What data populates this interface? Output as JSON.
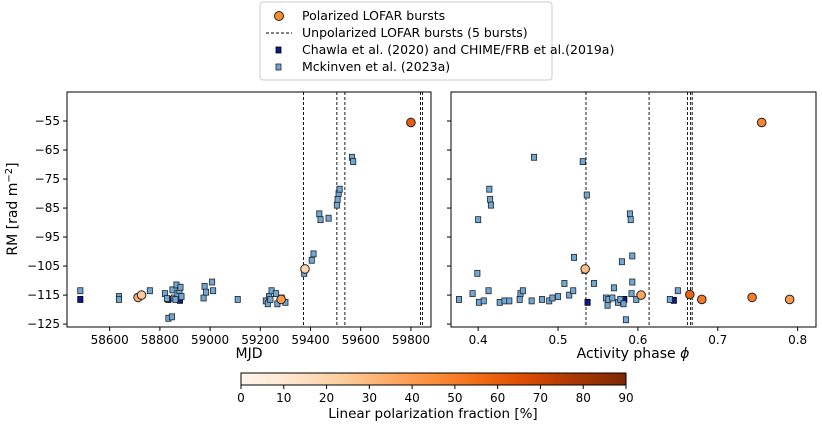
{
  "chart_data": [
    {
      "type": "scatter",
      "panel": "left",
      "xlabel": "MJD",
      "ylabel": "RM [rad m$^{-2}$]",
      "xlim": [
        58430,
        59880
      ],
      "ylim": [
        -126,
        -45
      ],
      "xticks": [
        58600,
        58800,
        59000,
        59200,
        59400,
        59600,
        59800
      ],
      "yticks": [
        -55,
        -65,
        -75,
        -85,
        -95,
        -105,
        -115,
        -125
      ],
      "grid": false,
      "series": [
        {
          "name": "Polarized LOFAR bursts",
          "marker": "circle",
          "points": [
            [
              58713,
              -115.8
            ],
            [
              58727,
              -115.0
            ],
            [
              59283,
              -116.5
            ],
            [
              59378,
              -106.0
            ],
            [
              59800,
              -55.5
            ]
          ]
        },
        {
          "name": "Unpolarized LOFAR bursts (5 bursts)",
          "marker": "vline",
          "x": [
            59372,
            59505,
            59537,
            59838,
            59846
          ]
        },
        {
          "name": "Chawla et al. (2020) and CHIME/FRB et al.(2019a)",
          "marker": "square",
          "points": [
            [
              58483,
              -116.5
            ],
            [
              58834,
              -116.5
            ],
            [
              58880,
              -116.8
            ]
          ]
        },
        {
          "name": "Mckinven et al. (2023a)",
          "marker": "square",
          "points": [
            [
              58483,
              -113.5
            ],
            [
              58637,
              -115.5
            ],
            [
              58637,
              -116.5
            ],
            [
              58760,
              -113.5
            ],
            [
              58820,
              -114.5
            ],
            [
              58828,
              -116.2
            ],
            [
              58834,
              -123
            ],
            [
              58848,
              -122.5
            ],
            [
              58850,
              -113.2
            ],
            [
              58855,
              -116
            ],
            [
              58862,
              -116.5
            ],
            [
              58866,
              -111.5
            ],
            [
              58870,
              -114.5
            ],
            [
              58878,
              -113.5
            ],
            [
              58882,
              -112.3
            ],
            [
              58886,
              -115.5
            ],
            [
              58974,
              -116
            ],
            [
              58978,
              -112
            ],
            [
              58984,
              -114
            ],
            [
              59008,
              -110.5
            ],
            [
              59012,
              -113.5
            ],
            [
              59110,
              -116.5
            ],
            [
              59222,
              -117
            ],
            [
              59230,
              -118
            ],
            [
              59235,
              -115.5
            ],
            [
              59240,
              -116.5
            ],
            [
              59245,
              -113.5
            ],
            [
              59262,
              -114.5
            ],
            [
              59268,
              -118
            ],
            [
              59285,
              -116
            ],
            [
              59300,
              -117.5
            ],
            [
              59375,
              -107.5
            ],
            [
              59405,
              -103
            ],
            [
              59412,
              -100.8
            ],
            [
              59435,
              -87
            ],
            [
              59440,
              -89
            ],
            [
              59472,
              -88.5
            ],
            [
              59505,
              -84
            ],
            [
              59508,
              -82
            ],
            [
              59512,
              -80
            ],
            [
              59516,
              -78.5
            ],
            [
              59565,
              -67.5
            ],
            [
              59570,
              -69
            ]
          ]
        }
      ]
    },
    {
      "type": "scatter",
      "panel": "right",
      "xlabel": "Activity phase $\\phi$",
      "xlim": [
        0.366,
        0.823
      ],
      "ylim": [
        -126,
        -45
      ],
      "xticks": [
        0.4,
        0.5,
        0.6,
        0.7,
        0.8
      ],
      "grid": false,
      "series": [
        {
          "name": "Polarized LOFAR bursts",
          "marker": "circle",
          "points": [
            [
              0.534,
              -106.0
            ],
            [
              0.604,
              -115.0
            ],
            [
              0.665,
              -114.8
            ],
            [
              0.68,
              -116.5
            ],
            [
              0.743,
              -115.8
            ],
            [
              0.755,
              -55.5
            ],
            [
              0.79,
              -116.5
            ]
          ]
        },
        {
          "name": "Unpolarized LOFAR bursts (5 bursts)",
          "marker": "vline",
          "x": [
            0.535,
            0.614,
            0.662,
            0.666,
            0.668
          ]
        },
        {
          "name": "Chawla et al. (2020) and CHIME/FRB et al.(2019a)",
          "marker": "square",
          "points": [
            [
              0.537,
              -117.5
            ],
            [
              0.583,
              -116.5
            ],
            [
              0.645,
              -116.8
            ]
          ]
        },
        {
          "name": "Mckinven et al. (2023a)",
          "marker": "square",
          "points": [
            [
              0.376,
              -116.5
            ],
            [
              0.393,
              -114.5
            ],
            [
              0.399,
              -107.5
            ],
            [
              0.4,
              -89
            ],
            [
              0.401,
              -117.5
            ],
            [
              0.407,
              -117.0
            ],
            [
              0.413,
              -113.5
            ],
            [
              0.414,
              -78.5
            ],
            [
              0.415,
              -82
            ],
            [
              0.416,
              -84
            ],
            [
              0.427,
              -117.5
            ],
            [
              0.433,
              -117
            ],
            [
              0.439,
              -117
            ],
            [
              0.452,
              -116.5
            ],
            [
              0.453,
              -114.5
            ],
            [
              0.456,
              -113.5
            ],
            [
              0.467,
              -117.0
            ],
            [
              0.47,
              -67.5
            ],
            [
              0.48,
              -116.5
            ],
            [
              0.489,
              -117
            ],
            [
              0.493,
              -116
            ],
            [
              0.5,
              -115.5
            ],
            [
              0.508,
              -111
            ],
            [
              0.514,
              -115
            ],
            [
              0.519,
              -113.5
            ],
            [
              0.52,
              -102
            ],
            [
              0.531,
              -69
            ],
            [
              0.533,
              -106.5
            ],
            [
              0.536,
              -80.5
            ],
            [
              0.545,
              -111
            ],
            [
              0.56,
              -116
            ],
            [
              0.562,
              -118.5
            ],
            [
              0.563,
              -116.5
            ],
            [
              0.568,
              -116
            ],
            [
              0.57,
              -112.5
            ],
            [
              0.575,
              -117.5
            ],
            [
              0.578,
              -116.5
            ],
            [
              0.58,
              -103.5
            ],
            [
              0.582,
              -118
            ],
            [
              0.585,
              -123.5
            ],
            [
              0.59,
              -87
            ],
            [
              0.591,
              -89
            ],
            [
              0.592,
              -114.5
            ],
            [
              0.593,
              -110.5
            ],
            [
              0.593,
              -101.5
            ],
            [
              0.598,
              -116.5
            ],
            [
              0.64,
              -116.5
            ],
            [
              0.65,
              -113.5
            ]
          ]
        }
      ]
    }
  ],
  "legend": {
    "placement": "top-center",
    "entries": [
      "Polarized LOFAR bursts",
      "Unpolarized LOFAR bursts (5 bursts)",
      "Chawla et al. (2020) and CHIME/FRB et al.(2019a)",
      "Mckinven et al. (2023a)"
    ]
  },
  "colorbar": {
    "label": "Linear polarization fraction [%]",
    "range": [
      0,
      90
    ],
    "ticks": [
      "0",
      "10",
      "20",
      "30",
      "40",
      "50",
      "60",
      "70",
      "80",
      "90"
    ],
    "colormap": [
      "#fff5eb",
      "#fee6ce",
      "#fdd0a2",
      "#fdae6b",
      "#fd8d3c",
      "#f16913",
      "#d94801",
      "#a63603",
      "#7f2704"
    ]
  },
  "colors": {
    "polarized_fill": "#f28e2b",
    "chawla_fill": "#0b1a8c",
    "mckinven_fill": "#6fa8d6",
    "marker_edge": "#222222",
    "vline": "#000000"
  },
  "polarized_fraction_pct": [
    34,
    24,
    40,
    20,
    60,
    28,
    36,
    58,
    52,
    50,
    48
  ]
}
